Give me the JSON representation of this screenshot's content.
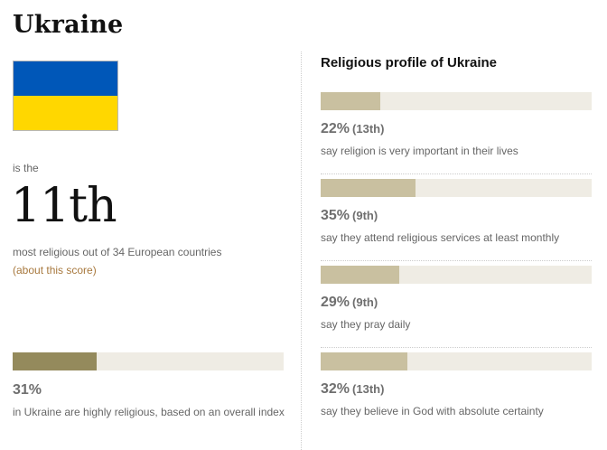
{
  "country": "Ukraine",
  "flag": {
    "top_color": "#0057b8",
    "bottom_color": "#ffd700",
    "icon": "ukraine-flag"
  },
  "ranking": {
    "prefix": "is the",
    "rank": "11th",
    "description": "most religious out of 34 European countries",
    "link_text": "(about this score)"
  },
  "index": {
    "value": 31,
    "label": "31%",
    "description": "in Ukraine are highly religious, based on an overall index",
    "color": "#948a5c"
  },
  "profile": {
    "heading": "Religious profile of Ukraine",
    "bar_color": "#c9c0a0",
    "track_color": "#efece4"
  },
  "chart_data": {
    "type": "bar",
    "orientation": "horizontal",
    "title": "Religious profile of Ukraine",
    "xlim": [
      0,
      100
    ],
    "unit": "%",
    "items": [
      {
        "value": 22,
        "label": "22%",
        "rank": "(13th)",
        "description": "say religion is very important in their lives"
      },
      {
        "value": 35,
        "label": "35%",
        "rank": "(9th)",
        "description": "say they attend religious services at least monthly"
      },
      {
        "value": 29,
        "label": "29%",
        "rank": "(9th)",
        "description": "say they pray daily"
      },
      {
        "value": 32,
        "label": "32%",
        "rank": "(13th)",
        "description": "say they believe in God with absolute certainty"
      }
    ]
  }
}
